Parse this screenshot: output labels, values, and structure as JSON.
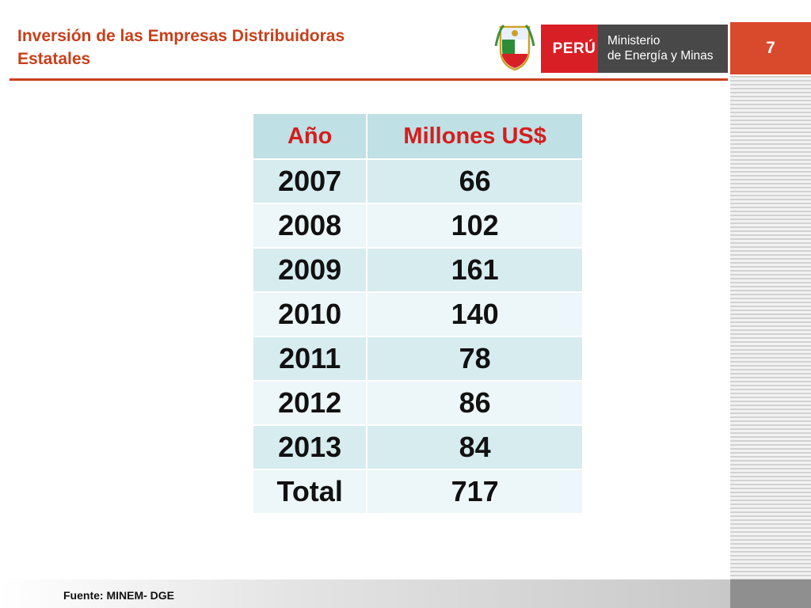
{
  "header": {
    "title_line1": "Inversión de las Empresas Distribuidoras",
    "title_line2": "Estatales",
    "page_number": "7"
  },
  "logo": {
    "country": "PERÚ",
    "ministry_line1": "Ministerio",
    "ministry_line2": "de Energía y Minas",
    "colors": {
      "red": "#d91f26",
      "gray": "#484848"
    }
  },
  "table": {
    "headers": [
      "Año",
      "Millones US$"
    ],
    "rows": [
      {
        "year": "2007",
        "value": "66"
      },
      {
        "year": "2008",
        "value": "102"
      },
      {
        "year": "2009",
        "value": "161"
      },
      {
        "year": "2010",
        "value": "140"
      },
      {
        "year": "2011",
        "value": "78"
      },
      {
        "year": "2012",
        "value": "86"
      },
      {
        "year": "2013",
        "value": "84"
      },
      {
        "year": "Total",
        "value": "717"
      }
    ]
  },
  "footer": {
    "source": "Fuente: MINEM- DGE"
  },
  "colors": {
    "accent": "#c8401c",
    "header_text": "#d51d1d",
    "table_header_bg": "#bfe0e4"
  }
}
